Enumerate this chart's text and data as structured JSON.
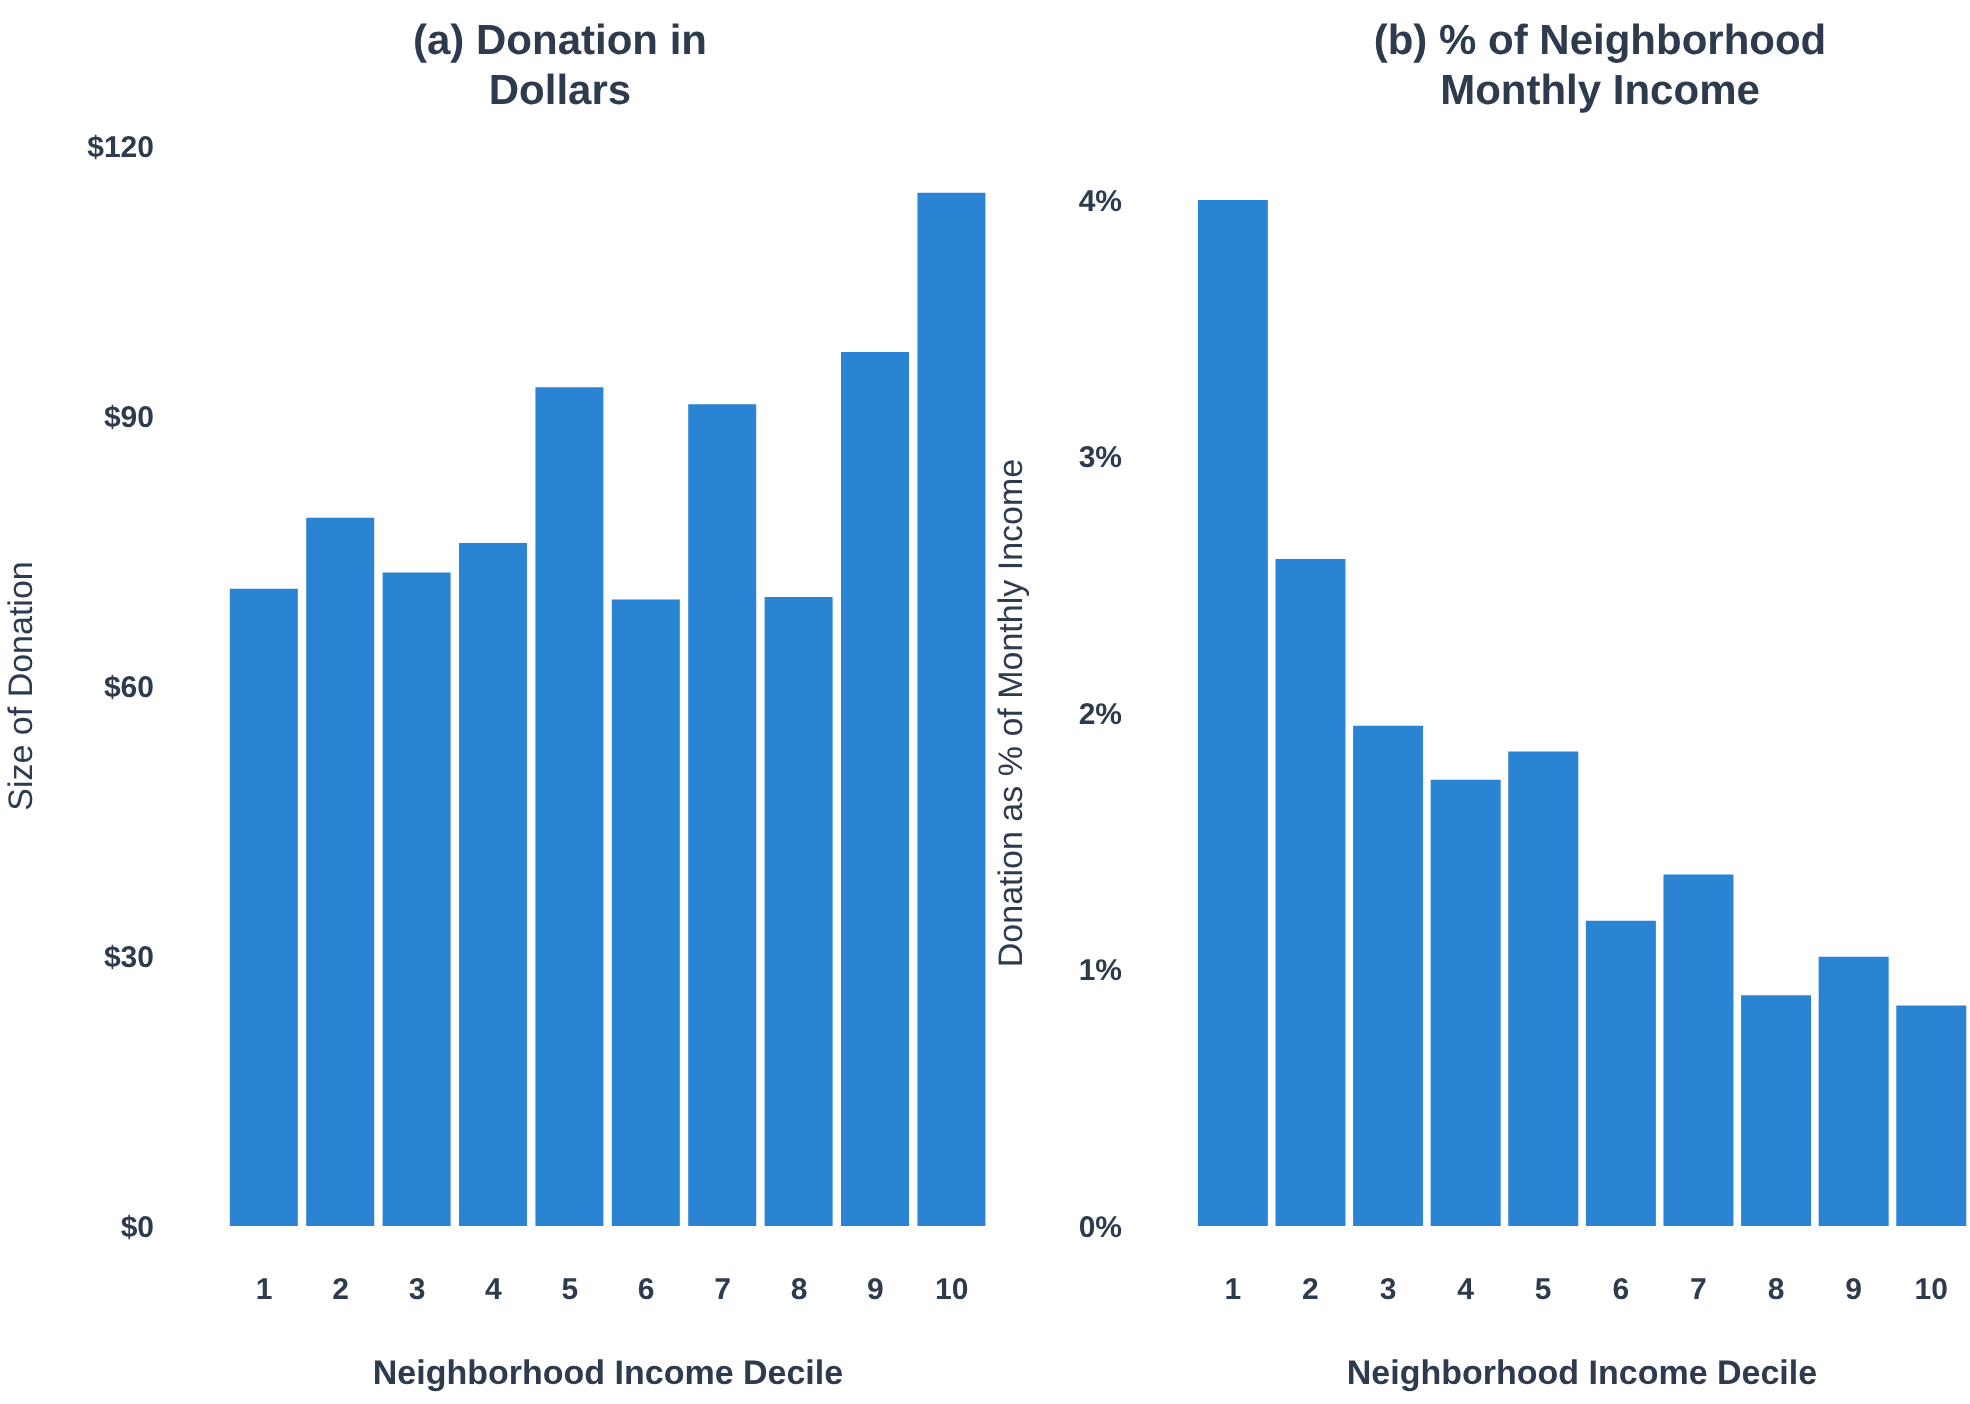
{
  "chart_data": [
    {
      "type": "bar",
      "title": "(a) Donation in Dollars",
      "xlabel": "Neighborhood Income Decile",
      "ylabel": "Size of Donation",
      "categories": [
        "1",
        "2",
        "3",
        "4",
        "5",
        "6",
        "7",
        "8",
        "9",
        "10"
      ],
      "values": [
        70.8,
        78.7,
        72.6,
        75.9,
        93.2,
        69.6,
        91.3,
        69.9,
        97.1,
        114.8
      ],
      "color": "#2b83d3",
      "ylim": [
        0,
        120
      ],
      "yticks": [
        {
          "value": 0,
          "label": "$0"
        },
        {
          "value": 30,
          "label": "$30"
        },
        {
          "value": 60,
          "label": "$60"
        },
        {
          "value": 90,
          "label": "$90"
        },
        {
          "value": 120,
          "label": "$120"
        }
      ]
    },
    {
      "type": "bar",
      "title": "(b)  % of Neighborhood Monthly Income",
      "xlabel": "Neighborhood Income Decile",
      "ylabel": "Donation as % of Monthly Income",
      "categories": [
        "1",
        "2",
        "3",
        "4",
        "5",
        "6",
        "7",
        "8",
        "9",
        "10"
      ],
      "values": [
        4,
        2.6,
        1.95,
        1.74,
        1.85,
        1.19,
        1.37,
        0.9,
        1.05,
        0.86
      ],
      "color": "#2b83d3",
      "ylim": [
        0,
        4
      ],
      "yticks": [
        {
          "value": 0,
          "label": "0%"
        },
        {
          "value": 1,
          "label": "1%"
        },
        {
          "value": 2,
          "label": "2%"
        },
        {
          "value": 3,
          "label": "3%"
        },
        {
          "value": 4,
          "label": "4%"
        }
      ]
    }
  ]
}
